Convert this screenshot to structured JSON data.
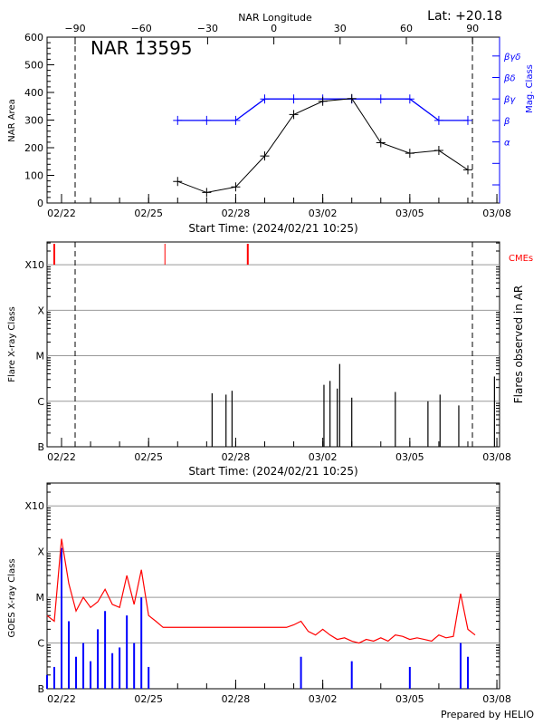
{
  "footer": "Prepared by HELIO",
  "colors": {
    "area": "#000000",
    "mag_class": "#0000ff",
    "cme": "#ff0000",
    "goes_long": "#ff0000",
    "goes_short": "#0000ff",
    "grid": "#999999"
  },
  "chart_data": [
    {
      "type": "line",
      "title": "NAR 13595",
      "corner_label": "Lat: +20.18",
      "ylabel": "NAR Area",
      "y2label": "Mag. Class",
      "xlabel": "Start Time: (2024/02/21 10:25)",
      "top_axis_label": "NAR Longitude",
      "top_ticks": [
        "-90",
        "-60",
        "-30",
        "0",
        "30",
        "60",
        "90"
      ],
      "limb_lines_longitude": [
        -90,
        90
      ],
      "ylim": [
        0,
        600
      ],
      "yticks": [
        0,
        100,
        200,
        300,
        400,
        500,
        600
      ],
      "xlim": [
        "2024-02-21T12:00",
        "2024-03-08T02:00"
      ],
      "xticks": [
        "02/22",
        "02/25",
        "02/28",
        "03/02",
        "03/05",
        "03/08"
      ],
      "mag_class_ticks": [
        "",
        "",
        "α",
        "β",
        "βγ",
        "βδ",
        "βγδ"
      ],
      "dates": [
        "2024-02-26",
        "2024-02-27",
        "2024-02-28",
        "2024-02-29",
        "2024-03-01",
        "2024-03-02",
        "2024-03-03",
        "2024-03-04",
        "2024-03-05",
        "2024-03-06",
        "2024-03-07"
      ],
      "series": [
        {
          "values": [
            78,
            38,
            58,
            170,
            320,
            368,
            378,
            218,
            180,
            190,
            120
          ]
        },
        {
          "values": [
            "β",
            "β",
            "β",
            "βγ",
            "βγ",
            "βγ",
            "βγ",
            "βγ",
            "βγ",
            "β",
            "β"
          ]
        }
      ]
    },
    {
      "type": "bar",
      "ylabel": "Flare X-ray Class",
      "y2label": "Flares observed in AR",
      "xlabel": "Start Time: (2024/02/21 10:25)",
      "yticks": [
        "B",
        "C",
        "M",
        "X",
        "X10"
      ],
      "cme_label": "CMEs",
      "cmes": [
        "2024-02-21T18:00",
        "2024-02-25T13:30",
        "2024-02-28T10:00"
      ],
      "flares": [
        {
          "time": "2024-02-27T04:30",
          "class": "C1.5"
        },
        {
          "time": "2024-02-27T16:00",
          "class": "C1.4"
        },
        {
          "time": "2024-02-27T21:00",
          "class": "C1.7"
        },
        {
          "time": "2024-03-02T01:00",
          "class": "C2.3"
        },
        {
          "time": "2024-03-02T06:00",
          "class": "C2.8"
        },
        {
          "time": "2024-03-02T12:00",
          "class": "C1.9"
        },
        {
          "time": "2024-03-02T14:00",
          "class": "C6.6"
        },
        {
          "time": "2024-03-03T00:00",
          "class": "C1.2"
        },
        {
          "time": "2024-03-04T12:00",
          "class": "C1.6"
        },
        {
          "time": "2024-03-05T15:00",
          "class": "C1.0"
        },
        {
          "time": "2024-03-06T01:00",
          "class": "C1.4"
        },
        {
          "time": "2024-03-06T16:30",
          "class": "B8.1"
        },
        {
          "time": "2024-03-07T22:00",
          "class": "C3.5"
        }
      ]
    },
    {
      "type": "line",
      "ylabel": "GOES X-ray Class",
      "yticks": [
        "B",
        "C",
        "M",
        "X",
        "X10"
      ],
      "start": "2024-02-21T12:00",
      "step_hours": 6,
      "series": [
        {
          "values": [
            "C4",
            "C3",
            "X1.9",
            "M2",
            "C5",
            "M1",
            "C6",
            "C8",
            "M1.5",
            "C7",
            "C6",
            "M3",
            "C7",
            "M4",
            "C4",
            "C3",
            "C2.2",
            "C2.2",
            "C2.2",
            "C2.2",
            "C2.2",
            "C2.2",
            "C2.2",
            "C2.2",
            "C2.2",
            "C2.2",
            "C2.2",
            "C2.2",
            "C2.2",
            "C2.2",
            "C2.2",
            "C2.2",
            "C2.2",
            "C2.2",
            "C2.5",
            "C3",
            "C1.8",
            "C1.5",
            "C2",
            "C1.5",
            "C1.2",
            "C1.3",
            "C1.1",
            "C1.0",
            "C1.2",
            "C1.1",
            "C1.3",
            "C1.1",
            "C1.5",
            "C1.4",
            "C1.2",
            "C1.3",
            "C1.2",
            "C1.1",
            "C1.5",
            "C1.3",
            "C1.4",
            "M1.2",
            "C2",
            "C1.5"
          ]
        },
        {
          "values": [
            "B2",
            "B3",
            "X1.2",
            "C3",
            "B5",
            "C1",
            "B4",
            "C2",
            "C5",
            "B6",
            "B8",
            "C4",
            "C1",
            "M1",
            "B3",
            "",
            "",
            "",
            "",
            "",
            "",
            "",
            "",
            "",
            "",
            "",
            "",
            "",
            "",
            "",
            "",
            "",
            "",
            "",
            "",
            "B5",
            "",
            "",
            "",
            "",
            "",
            "",
            "B4",
            "",
            "",
            "",
            "",
            "",
            "",
            "",
            "B3",
            "",
            "",
            "",
            "",
            "",
            "",
            "C1",
            "B5",
            ""
          ]
        }
      ]
    }
  ]
}
